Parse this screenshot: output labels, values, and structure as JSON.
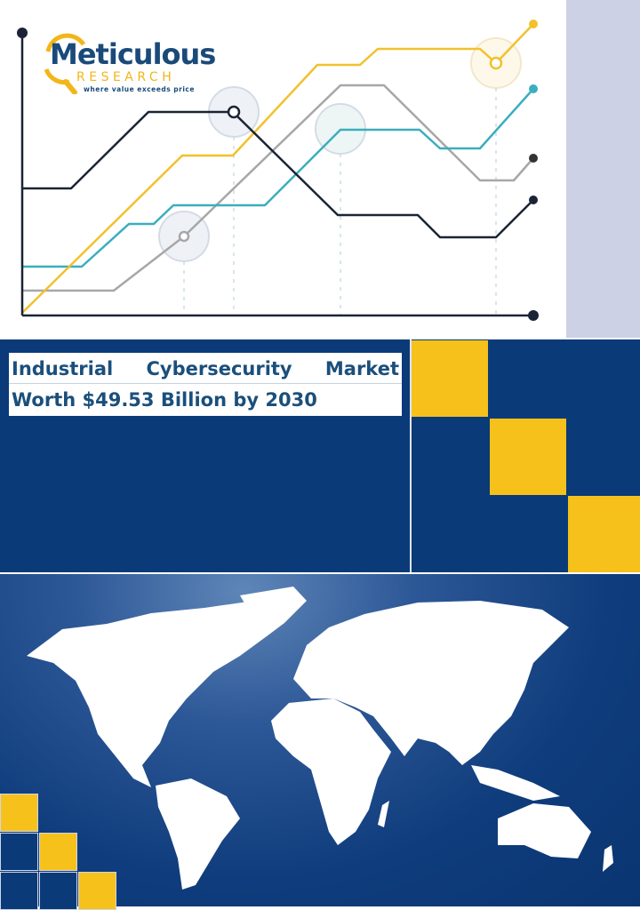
{
  "logo": {
    "name": "Meticulous",
    "sub": "RESEARCH",
    "tagline": "where value exceeds price"
  },
  "title": {
    "line1_words": [
      "Industrial",
      "Cybersecurity",
      "Market"
    ],
    "line2": "Worth $49.53 Billion by 2030"
  },
  "colors": {
    "navy": "#0a3a78",
    "yellow": "#f7c11c",
    "title_text": "#1b4f7b",
    "lavender": "#cdd1e5",
    "teal": "#3aaebe",
    "gray": "#a7a7a7",
    "dark": "#1b2436"
  }
}
